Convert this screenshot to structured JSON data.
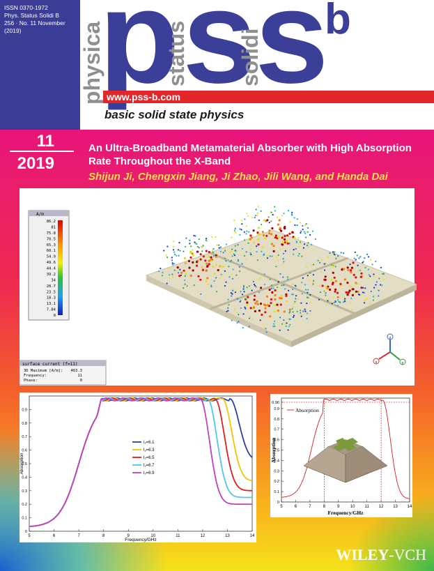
{
  "masthead": {
    "issn": [
      "ISSN 0370-1972",
      "Phys. Status Solidi B",
      "256 · No. 11 November",
      "(2019)"
    ],
    "logo": [
      "p",
      "s",
      "s"
    ],
    "logo_sup": "b",
    "vertical": [
      "physica",
      "status",
      "solidi"
    ],
    "url": "www.pss-b.com",
    "tagline": "basic solid state physics"
  },
  "issue": {
    "number": "11",
    "year": "2019"
  },
  "article": {
    "title_lines": [
      "An Ultra-Broadband Metamaterial Absorber with High Absorption",
      "Rate Throughout the X-Band"
    ],
    "authors": "Shijun Ji, Chengxin Jiang, Ji Zhao, Jili Wang, and Handa Dai"
  },
  "simulation": {
    "colorbar_unit": "A/m",
    "colorbar_ticks": [
      86.2,
      81,
      75.8,
      70.5,
      65.3,
      60.1,
      54.9,
      49.6,
      44.4,
      39.2,
      34,
      28.7,
      23.5,
      18.3,
      13.1,
      7.84,
      0
    ],
    "info_title": "surface current (f=11)",
    "info": [
      [
        "3D Maximum [A/m]:",
        "463.3"
      ],
      [
        "Frequency:",
        "11"
      ],
      [
        "Phase:",
        "0"
      ]
    ],
    "axes": [
      "z",
      "x",
      "y"
    ]
  },
  "plot_left": {
    "xlabel": "Frequency/GHz",
    "ylabel": "Absorption",
    "xticks": [
      5,
      6,
      7,
      8,
      9,
      10,
      11,
      12,
      13,
      14
    ],
    "yticks": [
      0,
      0.1,
      0.2,
      0.3,
      0.4,
      0.5,
      0.6,
      0.7,
      0.8,
      0.9
    ],
    "legend": [
      "l₂=6.1",
      "l₂=6.3",
      "l₂=6.5",
      "l₂=6.7",
      "l₂=6.9"
    ]
  },
  "plot_right": {
    "xlabel": "Frequency/GHz",
    "ylabel": "Absorption",
    "xticks": [
      5,
      6,
      7,
      8,
      9,
      10,
      11,
      12,
      13,
      14
    ],
    "yticks": [
      0,
      0.1,
      0.2,
      0.3,
      0.4,
      0.5,
      0.6,
      0.7,
      0.8,
      0.9,
      0.96
    ],
    "legend": "Absorption"
  },
  "publisher": [
    "WILEY",
    "-VCH"
  ]
}
